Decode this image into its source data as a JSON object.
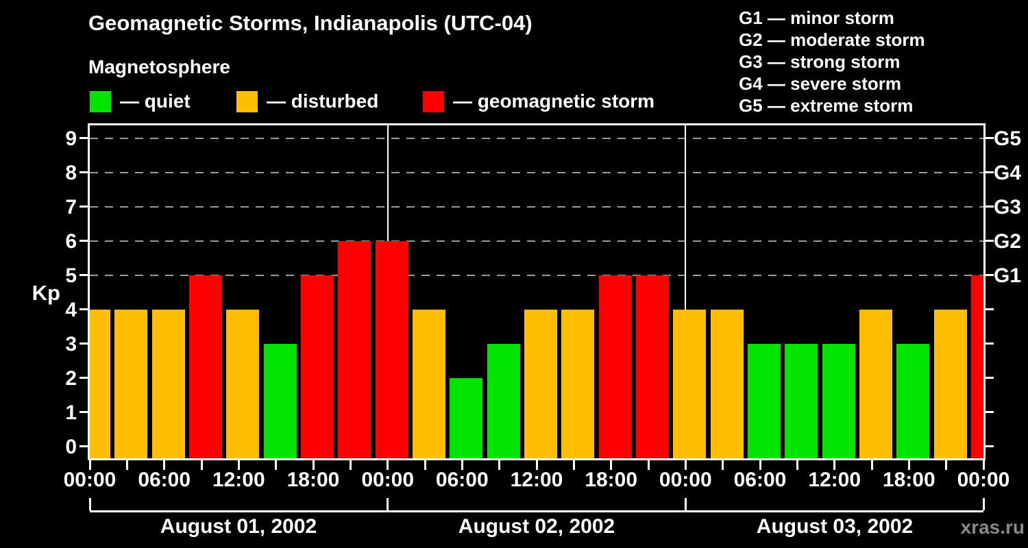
{
  "watermark": "xras.ru",
  "chart_data": {
    "type": "bar",
    "title": "Geomagnetic Storms, Indianapolis (UTC-04)",
    "subtitle": "Magnetosphere",
    "ylabel": "Kp",
    "ylim": [
      0,
      9
    ],
    "y_ticks": [
      0,
      1,
      2,
      3,
      4,
      5,
      6,
      7,
      8,
      9
    ],
    "gridline_levels": [
      5,
      6,
      7,
      8,
      9
    ],
    "grid_color": "#9a9a9a",
    "x_time_labels": [
      "00:00",
      "06:00",
      "12:00",
      "18:00",
      "00:00",
      "06:00",
      "12:00",
      "18:00",
      "00:00",
      "06:00",
      "12:00",
      "18:00",
      "00:00"
    ],
    "bar_times": [
      "00:00",
      "03:00",
      "06:00",
      "09:00",
      "12:00",
      "15:00",
      "18:00",
      "21:00"
    ],
    "legend": [
      {
        "status": "quiet",
        "label": "— quiet",
        "color": "#00E400"
      },
      {
        "status": "disturbed",
        "label": "— disturbed",
        "color": "#FFBE00"
      },
      {
        "status": "storm",
        "label": "— geomagnetic storm",
        "color": "#FF0000"
      }
    ],
    "g_legend": [
      "G1 — minor storm",
      "G2 — moderate storm",
      "G3 — strong storm",
      "G4 — severe storm",
      "G5 — extreme storm"
    ],
    "g_scale": [
      {
        "kp": 5,
        "label": "G1"
      },
      {
        "kp": 6,
        "label": "G2"
      },
      {
        "kp": 7,
        "label": "G3"
      },
      {
        "kp": 8,
        "label": "G4"
      },
      {
        "kp": 9,
        "label": "G5"
      }
    ],
    "days": [
      {
        "date": "August 01, 2002",
        "kp": [
          4,
          4,
          4,
          5,
          4,
          3,
          5,
          6
        ],
        "status": [
          "disturbed",
          "disturbed",
          "disturbed",
          "storm",
          "disturbed",
          "quiet",
          "storm",
          "storm"
        ]
      },
      {
        "date": "August 02, 2002",
        "kp": [
          6,
          4,
          2,
          3,
          4,
          4,
          5,
          5
        ],
        "status": [
          "storm",
          "disturbed",
          "quiet",
          "quiet",
          "disturbed",
          "disturbed",
          "storm",
          "storm"
        ]
      },
      {
        "date": "August 03, 2002",
        "kp": [
          4,
          4,
          3,
          3,
          3,
          4,
          3,
          4
        ],
        "status": [
          "disturbed",
          "disturbed",
          "quiet",
          "quiet",
          "quiet",
          "disturbed",
          "quiet",
          "disturbed"
        ]
      }
    ],
    "next_partial_bar": {
      "kp": 5,
      "status": "storm"
    }
  }
}
